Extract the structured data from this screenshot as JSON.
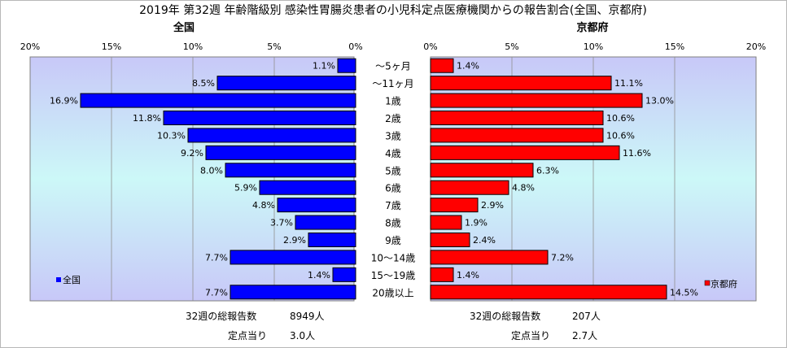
{
  "chart_data": {
    "type": "bar",
    "orientation": "horizontal-pyramid",
    "title": "2019年 第32週 年齢階級別 感染性胃腸炎患者の小児科定点医療機関からの報告割合(全国、京都府)",
    "categories": [
      "～5ヶ月",
      "～11ヶ月",
      "1歳",
      "2歳",
      "3歳",
      "4歳",
      "5歳",
      "6歳",
      "7歳",
      "8歳",
      "9歳",
      "10～14歳",
      "15～19歳",
      "20歳以上"
    ],
    "xlim": [
      0,
      20
    ],
    "ticks": [
      "20%",
      "15%",
      "10%",
      "5%",
      "0%"
    ],
    "ticks_right": [
      "0%",
      "5%",
      "10%",
      "15%",
      "20%"
    ],
    "grid": true,
    "series": [
      {
        "name": "全国",
        "side": "left",
        "panel_title": "全国",
        "color": "#0000FF",
        "values": [
          1.1,
          8.5,
          16.9,
          11.8,
          10.3,
          9.2,
          8.0,
          5.9,
          4.8,
          3.7,
          2.9,
          7.7,
          1.4,
          7.7
        ],
        "labels": [
          "1.1%",
          "8.5%",
          "16.9%",
          "11.8%",
          "10.3%",
          "9.2%",
          "8.0%",
          "5.9%",
          "4.8%",
          "3.7%",
          "2.9%",
          "7.7%",
          "1.4%",
          "7.7%"
        ],
        "legend": "全国",
        "legend_position": "bottom-left"
      },
      {
        "name": "京都府",
        "side": "right",
        "panel_title": "京都府",
        "color": "#FF0000",
        "values": [
          1.4,
          11.1,
          13.0,
          10.6,
          10.6,
          11.6,
          6.3,
          4.8,
          2.9,
          1.9,
          2.4,
          7.2,
          1.4,
          14.5
        ],
        "labels": [
          "1.4%",
          "11.1%",
          "13.0%",
          "10.6%",
          "10.6%",
          "11.6%",
          "6.3%",
          "4.8%",
          "2.9%",
          "1.9%",
          "2.4%",
          "7.2%",
          "1.4%",
          "14.5%"
        ],
        "legend": "京都府",
        "legend_position": "bottom-right"
      }
    ],
    "footer": {
      "left": {
        "total_label": "32週の総報告数",
        "total_value": "8949人",
        "per_label": "定点当り",
        "per_value": "3.0人"
      },
      "right": {
        "total_label": "32週の総報告数",
        "total_value": "207人",
        "per_label": "定点当り",
        "per_value": "2.7人"
      }
    }
  }
}
